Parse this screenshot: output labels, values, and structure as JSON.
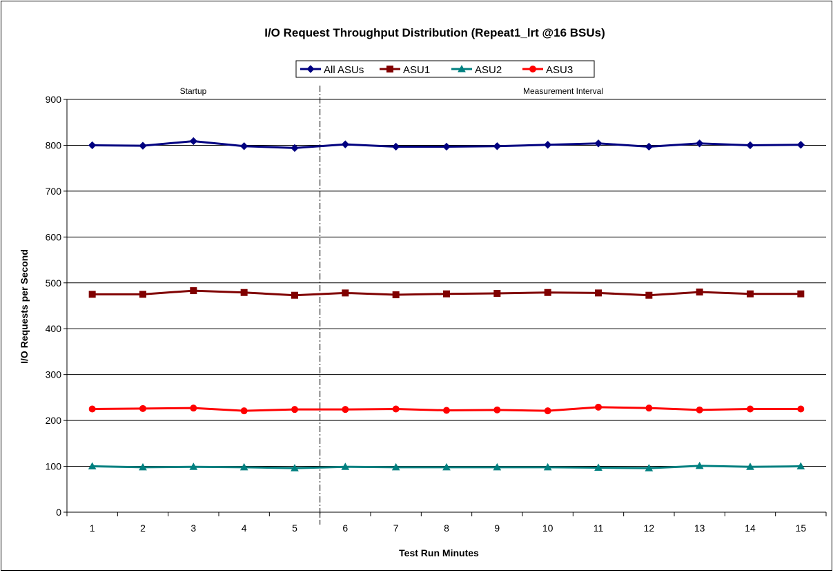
{
  "chart_data": {
    "type": "line",
    "title": "I/O Request Throughput Distribution (Repeat1_lrt @16 BSUs)",
    "xlabel": "Test Run Minutes",
    "ylabel": "I/O Requests per Second",
    "ylim": [
      0,
      900
    ],
    "yticks": [
      0,
      100,
      200,
      300,
      400,
      500,
      600,
      700,
      800,
      900
    ],
    "categories": [
      "1",
      "2",
      "3",
      "4",
      "5",
      "6",
      "7",
      "8",
      "9",
      "10",
      "11",
      "12",
      "13",
      "14",
      "15"
    ],
    "grid": true,
    "legend_position": "top-center",
    "phase_labels": {
      "startup": "Startup",
      "measurement": "Measurement Interval"
    },
    "series": [
      {
        "name": "All ASUs",
        "color": "#000080",
        "marker": "diamond",
        "values": [
          800,
          799,
          809,
          798,
          794,
          802,
          797,
          797,
          798,
          801,
          804,
          797,
          804,
          800,
          801
        ]
      },
      {
        "name": "ASU1",
        "color": "#800000",
        "marker": "square",
        "values": [
          475,
          475,
          483,
          479,
          473,
          478,
          474,
          476,
          477,
          479,
          478,
          473,
          480,
          476,
          476
        ]
      },
      {
        "name": "ASU2",
        "color": "#008080",
        "marker": "triangle",
        "values": [
          100,
          98,
          99,
          98,
          96,
          99,
          98,
          98,
          98,
          98,
          97,
          96,
          101,
          99,
          100
        ]
      },
      {
        "name": "ASU3",
        "color": "#ff0000",
        "marker": "circle",
        "values": [
          225,
          226,
          227,
          221,
          224,
          224,
          225,
          222,
          223,
          221,
          229,
          227,
          223,
          225,
          225
        ]
      }
    ]
  }
}
